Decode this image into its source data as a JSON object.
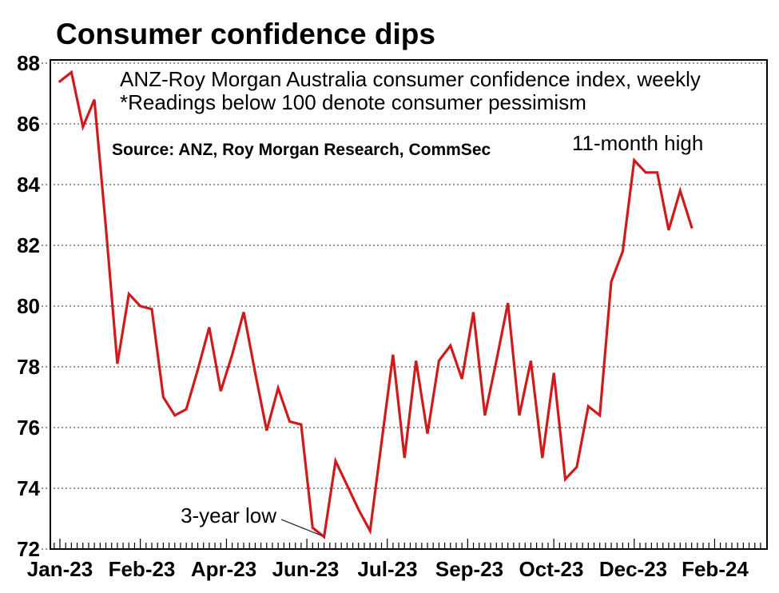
{
  "title": "Consumer confidence dips",
  "annotations": {
    "subtitle_line1": "ANZ-Roy Morgan Australia consumer confidence index, weekly",
    "subtitle_line2": "*Readings below 100 denote consumer pessimism",
    "source": "Source: ANZ, Roy Morgan Research, CommSec",
    "high_label": "11-month high",
    "low_label": "3-year low"
  },
  "colors": {
    "line": "#CE1B1B",
    "grid": "#555555",
    "axis": "#000000",
    "pointer": "#333333",
    "background": "#FFFFFF",
    "text": "#000000"
  },
  "chart_data": {
    "type": "line",
    "title": "Consumer confidence dips",
    "series_name": "ANZ-Roy Morgan Australia consumer confidence index, weekly",
    "x_tick_labels": [
      "Jan-23",
      "Feb-23",
      "Apr-23",
      "Jun-23",
      "Jul-23",
      "Sep-23",
      "Oct-23",
      "Dec-23",
      "Feb-24"
    ],
    "y_ticks": [
      88,
      86,
      84,
      82,
      80,
      78,
      76,
      74,
      72
    ],
    "ylim": [
      72,
      88
    ],
    "grid": "horizontal dotted",
    "legend_position": "none",
    "values": [
      87.4,
      87.7,
      85.9,
      86.8,
      82.6,
      78.1,
      80.4,
      80.0,
      79.9,
      77.0,
      76.4,
      76.6,
      77.9,
      79.3,
      77.2,
      78.4,
      79.8,
      77.8,
      75.9,
      77.3,
      76.2,
      76.1,
      72.7,
      72.4,
      74.9,
      74.1,
      73.3,
      72.6,
      75.5,
      78.4,
      75.0,
      78.2,
      75.8,
      78.2,
      78.7,
      77.6,
      79.8,
      76.4,
      78.2,
      80.1,
      76.4,
      78.2,
      75.0,
      77.8,
      74.3,
      74.7,
      76.7,
      76.4,
      80.8,
      81.8,
      84.8,
      84.4,
      84.4,
      82.5,
      83.8,
      82.6
    ],
    "annotated_points": {
      "three_year_low": 72.4,
      "eleven_month_high": 84.8
    }
  }
}
